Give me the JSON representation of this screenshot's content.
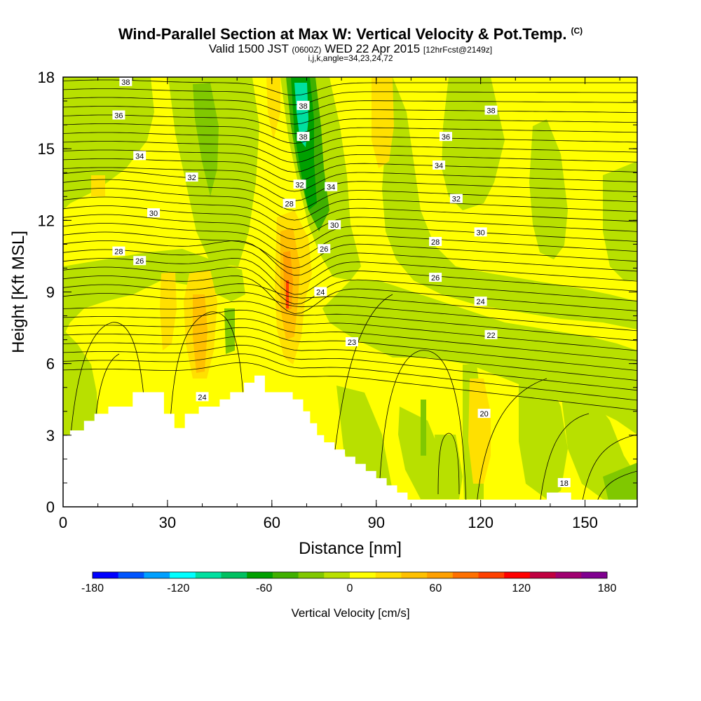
{
  "header": {
    "title": "Wind-Parallel Section at Max W: Vertical Velocity & Pot.Temp.",
    "title_tag": "(C)",
    "subtitle_valid": "Valid 1500 JST",
    "subtitle_utc": "(0600Z)",
    "subtitle_date": "WED 22 Apr 2015",
    "subtitle_fcst": "[12hrFcst@2149z]",
    "params": "i,j,k,angle=34,23,24,72"
  },
  "chart_data": {
    "type": "heatmap",
    "title": "Wind-Parallel Section at Max W: Vertical Velocity & Pot.Temp.",
    "xlabel": "Distance [nm]",
    "ylabel": "Height [Kft MSL]",
    "xlim": [
      0,
      165
    ],
    "ylim": [
      0,
      18
    ],
    "x_ticks": [
      0,
      30,
      60,
      90,
      120,
      150
    ],
    "y_ticks": [
      0,
      3,
      6,
      9,
      12,
      15,
      18
    ],
    "terrain": [
      [
        0,
        3
      ],
      [
        2,
        3
      ],
      [
        2,
        3.2
      ],
      [
        6,
        3.2
      ],
      [
        6,
        3.6
      ],
      [
        9,
        3.6
      ],
      [
        9,
        3.9
      ],
      [
        13,
        3.9
      ],
      [
        13,
        4.2
      ],
      [
        20,
        4.2
      ],
      [
        20,
        4.8
      ],
      [
        29,
        4.8
      ],
      [
        29,
        3.9
      ],
      [
        32,
        3.9
      ],
      [
        32,
        3.3
      ],
      [
        35,
        3.3
      ],
      [
        35,
        3.9
      ],
      [
        39,
        3.9
      ],
      [
        39,
        4.2
      ],
      [
        45,
        4.2
      ],
      [
        45,
        4.5
      ],
      [
        48,
        4.5
      ],
      [
        48,
        4.8
      ],
      [
        52,
        4.8
      ],
      [
        52,
        5.2
      ],
      [
        55,
        5.2
      ],
      [
        55,
        5.5
      ],
      [
        58,
        5.5
      ],
      [
        58,
        4.8
      ],
      [
        66,
        4.8
      ],
      [
        66,
        4.5
      ],
      [
        69,
        4.5
      ],
      [
        69,
        4
      ],
      [
        71,
        4
      ],
      [
        71,
        3.5
      ],
      [
        73,
        3.5
      ],
      [
        73,
        3
      ],
      [
        75,
        3
      ],
      [
        75,
        2.7
      ],
      [
        78,
        2.7
      ],
      [
        78,
        2.4
      ],
      [
        81,
        2.4
      ],
      [
        81,
        2.1
      ],
      [
        84,
        2.1
      ],
      [
        84,
        1.8
      ],
      [
        87,
        1.8
      ],
      [
        87,
        1.5
      ],
      [
        90,
        1.5
      ],
      [
        90,
        1.2
      ],
      [
        93,
        1.2
      ],
      [
        93,
        0.9
      ],
      [
        96,
        0.9
      ],
      [
        96,
        0.6
      ],
      [
        99,
        0.6
      ],
      [
        99,
        0.3
      ],
      [
        139,
        0.3
      ],
      [
        139,
        0.6
      ],
      [
        146,
        0.6
      ],
      [
        146,
        0.3
      ],
      [
        165,
        0.3
      ],
      [
        165,
        0
      ],
      [
        0,
        0
      ]
    ],
    "contour_labels": [
      {
        "text": "38",
        "x": 18,
        "y": 17.8
      },
      {
        "text": "36",
        "x": 16,
        "y": 16.4
      },
      {
        "text": "34",
        "x": 22,
        "y": 14.7
      },
      {
        "text": "32",
        "x": 37,
        "y": 13.8
      },
      {
        "text": "30",
        "x": 26,
        "y": 12.3
      },
      {
        "text": "28",
        "x": 16,
        "y": 10.7
      },
      {
        "text": "26",
        "x": 22,
        "y": 10.3
      },
      {
        "text": "38",
        "x": 69,
        "y": 16.8
      },
      {
        "text": "38",
        "x": 69,
        "y": 15.5
      },
      {
        "text": "32",
        "x": 68,
        "y": 13.5
      },
      {
        "text": "34",
        "x": 77,
        "y": 13.4
      },
      {
        "text": "28",
        "x": 65,
        "y": 12.7
      },
      {
        "text": "30",
        "x": 78,
        "y": 11.8
      },
      {
        "text": "26",
        "x": 75,
        "y": 10.8
      },
      {
        "text": "24",
        "x": 74,
        "y": 9
      },
      {
        "text": "23",
        "x": 83,
        "y": 6.9
      },
      {
        "text": "24",
        "x": 40,
        "y": 4.6
      },
      {
        "text": "38",
        "x": 123,
        "y": 16.6
      },
      {
        "text": "36",
        "x": 110,
        "y": 15.5
      },
      {
        "text": "34",
        "x": 108,
        "y": 14.3
      },
      {
        "text": "32",
        "x": 113,
        "y": 12.9
      },
      {
        "text": "30",
        "x": 120,
        "y": 11.5
      },
      {
        "text": "28",
        "x": 107,
        "y": 11.1
      },
      {
        "text": "26",
        "x": 107,
        "y": 9.6
      },
      {
        "text": "24",
        "x": 120,
        "y": 8.6
      },
      {
        "text": "22",
        "x": 123,
        "y": 7.2
      },
      {
        "text": "20",
        "x": 121,
        "y": 3.9
      },
      {
        "text": "18",
        "x": 144,
        "y": 1
      }
    ],
    "colorbar": {
      "label": "Vertical Velocity [cm/s]",
      "colors": [
        "#0000ff",
        "#0055ff",
        "#00a0ff",
        "#00ffff",
        "#00e0a0",
        "#00c060",
        "#00a000",
        "#40b000",
        "#80c800",
        "#b8e000",
        "#ffff00",
        "#ffe000",
        "#ffc000",
        "#ffa000",
        "#ff7000",
        "#ff4000",
        "#ff0000",
        "#c00040",
        "#a00070",
        "#800090"
      ],
      "tick_labels": [
        "-180",
        "-120",
        "-60",
        "0",
        "60",
        "120",
        "180"
      ]
    }
  }
}
